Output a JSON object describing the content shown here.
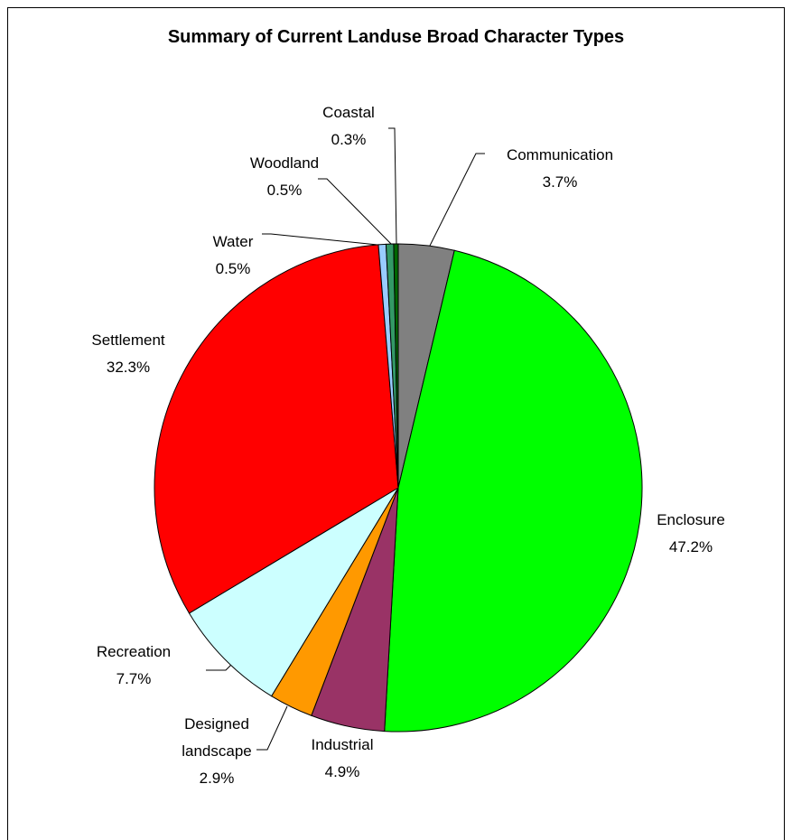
{
  "chart_data": {
    "type": "pie",
    "title": "Summary of Current Landuse Broad Character Types",
    "categories": [
      "Communication",
      "Enclosure",
      "Industrial",
      "Designed landscape",
      "Recreation",
      "Settlement",
      "Water",
      "Woodland",
      "Coastal"
    ],
    "values": [
      3.7,
      47.2,
      4.9,
      2.9,
      7.7,
      32.3,
      0.5,
      0.5,
      0.3
    ],
    "value_labels": [
      "3.7%",
      "47.2%",
      "4.9%",
      "2.9%",
      "7.7%",
      "32.3%",
      "0.5%",
      "0.5%",
      "0.3%"
    ],
    "colors": [
      "#808080",
      "#00ff00",
      "#993366",
      "#ff9900",
      "#ccffff",
      "#ff0000",
      "#99ccff",
      "#339966",
      "#006600"
    ]
  }
}
